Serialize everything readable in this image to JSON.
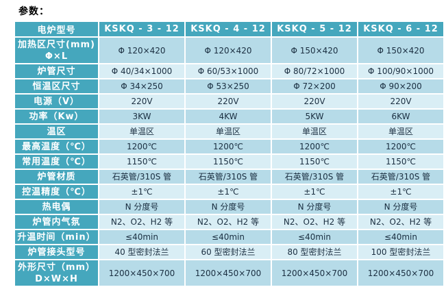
{
  "page_title": "参数：",
  "colors": {
    "teal": "#45a7bd",
    "row_dark": "#b6dbe8",
    "row_light": "#d9eef5",
    "text": "#1a2e40"
  },
  "table": {
    "header_label": "电炉型号",
    "models": [
      "KSKQ - 3 - 12",
      "KSKQ - 4 - 12",
      "KSKQ - 5 - 12",
      "KSKQ - 6 - 12"
    ],
    "rows": [
      {
        "label": "加热区尺寸(mm)",
        "label2": "Φ×L",
        "values": [
          "Φ 120×420",
          "Φ 120×420",
          "Φ 150×420",
          "Φ 150×420"
        ]
      },
      {
        "label": "炉管尺寸",
        "values": [
          "Φ 40/34×1000",
          "Φ 60/53×1000",
          "Φ 80/72×1000",
          "Φ 100/90×1000"
        ]
      },
      {
        "label": "恒温区尺寸",
        "values": [
          "Φ 34×250",
          "Φ 53×250",
          "Φ 72×200",
          "Φ 90×200"
        ]
      },
      {
        "label": "电源（V）",
        "values": [
          "220V",
          "220V",
          "220V",
          "220V"
        ]
      },
      {
        "label": "功率（Kw）",
        "values": [
          "3KW",
          "4KW",
          "5KW",
          "6KW"
        ]
      },
      {
        "label": "温区",
        "values": [
          "单温区",
          "单温区",
          "单温区",
          "单温区"
        ]
      },
      {
        "label": "最高温度（℃）",
        "values": [
          "1200℃",
          "1200℃",
          "1200℃",
          "1200℃"
        ]
      },
      {
        "label": "常用温度（℃）",
        "values": [
          "1150℃",
          "1150℃",
          "1150℃",
          "1150℃"
        ]
      },
      {
        "label": "炉管材质",
        "values": [
          "石英管/310S 管",
          "石英管/310S 管",
          "石英管/310S 管",
          "石英管/310S 管"
        ]
      },
      {
        "label": "控温精度（℃）",
        "values": [
          "±1℃",
          "±1℃",
          "±1℃",
          "±1℃"
        ]
      },
      {
        "label": "热电偶",
        "values": [
          "N 分度号",
          "N 分度号",
          "N 分度号",
          "N 分度号"
        ]
      },
      {
        "label": "炉管内气氛",
        "values": [
          "N2、O2、H2 等",
          "N2、O2、H2 等",
          "N2、O2、H2 等",
          "N2、O2、H2 等"
        ]
      },
      {
        "label": "升温时间（min）",
        "values": [
          "≤40min",
          "≤40min",
          "≤40min",
          "≤40min"
        ]
      },
      {
        "label": "炉管接头型号",
        "values": [
          "40 型密封法兰",
          "60 型密封法兰",
          "80 型密封法兰",
          "100 型密封法兰"
        ]
      },
      {
        "label": "外形尺寸（mm）",
        "label2": "D×W×H",
        "values": [
          "1200×450×700",
          "1200×450×700",
          "1200×450×700",
          "1200×450×700"
        ]
      }
    ]
  }
}
